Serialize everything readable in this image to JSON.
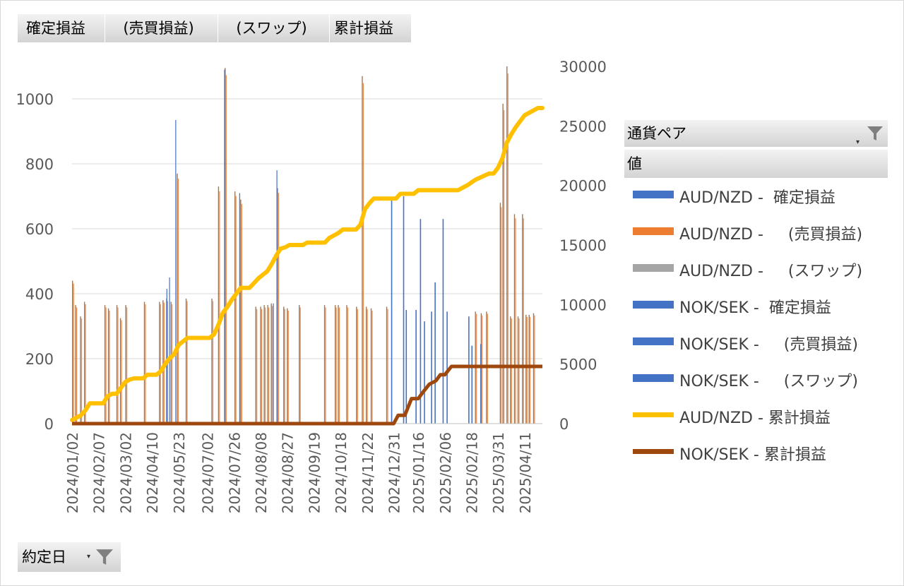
{
  "pivot_buttons": {
    "value_fields": [
      "確定損益",
      "  (売買損益)",
      "  (スワップ)",
      "累計損益"
    ],
    "axis_field": "約定日",
    "legend_field": "通貨ペア",
    "values_label": "値"
  },
  "colors": {
    "aud_realized": "#4472c4",
    "aud_trade": "#ed7d31",
    "aud_swap": "#a5a5a5",
    "nok_realized": "#4472c4",
    "nok_trade": "#4472c4",
    "nok_swap": "#4472c4",
    "aud_cum": "#ffc000",
    "nok_cum": "#9e480e",
    "bar_brown": "#a0785a"
  },
  "icons": {
    "filter": "funnel-icon",
    "dropdown": "dropdown-arrow-icon"
  },
  "chart_data": {
    "type": "bar+line",
    "x_tick_labels": [
      "2024/01/02",
      "2024/02/07",
      "2024/03/02",
      "2024/04/10",
      "2024/05/23",
      "2024/07/02",
      "2024/07/26",
      "2024/08/08",
      "2024/08/27",
      "2024/09/19",
      "2024/10/18",
      "2024/11/22",
      "2024/12/31",
      "2025/01/16",
      "2025/02/06",
      "2025/02/18",
      "2025/03/31",
      "2025/04/11"
    ],
    "y_left": {
      "ticks": [
        "0",
        "200",
        "400",
        "600",
        "800",
        "1000"
      ],
      "lim": [
        0,
        1000
      ]
    },
    "y_right": {
      "ticks": [
        "0",
        "5000",
        "10000",
        "15000",
        "20000",
        "25000",
        "30000"
      ],
      "lim": [
        0,
        30000
      ]
    },
    "grid": true,
    "legend_position": "right",
    "series": [
      {
        "name": "AUD/NZD -  確定損益",
        "kind": "bar",
        "color_key": "aud_realized"
      },
      {
        "name": "AUD/NZD -     (売買損益)",
        "kind": "bar",
        "color_key": "aud_trade"
      },
      {
        "name": "AUD/NZD -     (スワップ)",
        "kind": "bar",
        "color_key": "aud_swap"
      },
      {
        "name": "NOK/SEK -  確定損益",
        "kind": "bar",
        "color_key": "nok_realized"
      },
      {
        "name": "NOK/SEK -     (売買損益)",
        "kind": "bar",
        "color_key": "nok_trade"
      },
      {
        "name": "NOK/SEK -     (スワップ)",
        "kind": "bar",
        "color_key": "nok_swap"
      },
      {
        "name": "AUD/NZD - 累計損益",
        "kind": "line",
        "color_key": "aud_cum"
      },
      {
        "name": "NOK/SEK - 累計損益",
        "kind": "line",
        "color_key": "nok_cum"
      }
    ],
    "aud_bars": [
      [
        0.0,
        440
      ],
      [
        0.7,
        365
      ],
      [
        1.8,
        330
      ],
      [
        2.7,
        375
      ],
      [
        7.3,
        365
      ],
      [
        8.1,
        355
      ],
      [
        10.0,
        365
      ],
      [
        10.8,
        325
      ],
      [
        12.0,
        365
      ],
      [
        16.2,
        375
      ],
      [
        19.6,
        375
      ],
      [
        20.4,
        380
      ],
      [
        21.2,
        385
      ],
      [
        22.2,
        375
      ],
      [
        23.6,
        770
      ],
      [
        25.6,
        385
      ],
      [
        31.4,
        385
      ],
      [
        32.9,
        730
      ],
      [
        34.4,
        1095
      ],
      [
        36.6,
        715
      ],
      [
        37.9,
        690
      ],
      [
        41.3,
        360
      ],
      [
        42.4,
        360
      ],
      [
        43.2,
        365
      ],
      [
        44.0,
        365
      ],
      [
        44.8,
        370
      ],
      [
        46.2,
        725
      ],
      [
        47.6,
        360
      ],
      [
        48.4,
        355
      ],
      [
        51.1,
        365
      ],
      [
        56.8,
        365
      ],
      [
        59.2,
        365
      ],
      [
        59.9,
        365
      ],
      [
        61.8,
        365
      ],
      [
        64.0,
        360
      ],
      [
        65.3,
        1070
      ],
      [
        66.2,
        360
      ],
      [
        67.3,
        355
      ],
      [
        70.8,
        360
      ],
      [
        90.8,
        345
      ],
      [
        92.1,
        340
      ],
      [
        93.3,
        345
      ],
      [
        96.4,
        680
      ],
      [
        97.0,
        985
      ],
      [
        97.9,
        1100
      ],
      [
        98.7,
        330
      ],
      [
        99.6,
        645
      ],
      [
        100.4,
        330
      ],
      [
        101.4,
        645
      ],
      [
        102.2,
        335
      ],
      [
        102.9,
        335
      ],
      [
        103.9,
        340
      ]
    ],
    "nok_bars": [
      [
        71.9,
        690
      ],
      [
        74.6,
        700
      ],
      [
        75.2,
        350
      ],
      [
        77.4,
        350
      ],
      [
        78.4,
        630
      ],
      [
        79.3,
        315
      ],
      [
        80.9,
        345
      ],
      [
        81.7,
        435
      ],
      [
        83.5,
        630
      ],
      [
        84.4,
        345
      ],
      [
        89.3,
        330
      ],
      [
        90.0,
        240
      ],
      [
        92.0,
        245
      ]
    ],
    "aud_blue_spikes": [
      [
        23.5,
        935
      ],
      [
        21.5,
        415
      ],
      [
        22.1,
        450
      ],
      [
        46.3,
        780
      ],
      [
        34.5,
        1090
      ],
      [
        37.9,
        710
      ],
      [
        45.5,
        370
      ]
    ],
    "aud_cum": [
      [
        0,
        300
      ],
      [
        1,
        500
      ],
      [
        2,
        700
      ],
      [
        3,
        1100
      ],
      [
        4,
        1700
      ],
      [
        6,
        1700
      ],
      [
        7,
        1700
      ],
      [
        8,
        2300
      ],
      [
        9,
        2500
      ],
      [
        10,
        2500
      ],
      [
        11,
        3000
      ],
      [
        12,
        3500
      ],
      [
        13,
        3700
      ],
      [
        14,
        3800
      ],
      [
        16,
        3800
      ],
      [
        17,
        4100
      ],
      [
        19,
        4100
      ],
      [
        20,
        4400
      ],
      [
        21,
        5000
      ],
      [
        22,
        5500
      ],
      [
        23,
        5800
      ],
      [
        24,
        6600
      ],
      [
        25,
        6900
      ],
      [
        26,
        7200
      ],
      [
        31,
        7200
      ],
      [
        32,
        7500
      ],
      [
        33,
        8300
      ],
      [
        34,
        9300
      ],
      [
        35,
        9800
      ],
      [
        36,
        10400
      ],
      [
        37,
        10900
      ],
      [
        38,
        11400
      ],
      [
        40,
        11400
      ],
      [
        41,
        11800
      ],
      [
        42,
        12200
      ],
      [
        44,
        12800
      ],
      [
        45,
        13400
      ],
      [
        46,
        14100
      ],
      [
        47,
        14700
      ],
      [
        48,
        14800
      ],
      [
        49,
        15000
      ],
      [
        52,
        15000
      ],
      [
        53,
        15200
      ],
      [
        57,
        15200
      ],
      [
        58,
        15600
      ],
      [
        60,
        16000
      ],
      [
        61,
        16300
      ],
      [
        64,
        16300
      ],
      [
        65,
        16700
      ],
      [
        66,
        18000
      ],
      [
        67,
        18500
      ],
      [
        68,
        18900
      ],
      [
        73,
        18900
      ],
      [
        74,
        19300
      ],
      [
        77,
        19300
      ],
      [
        78,
        19600
      ],
      [
        87,
        19600
      ],
      [
        89,
        20000
      ],
      [
        91,
        20500
      ],
      [
        94,
        21000
      ],
      [
        95,
        21000
      ],
      [
        96,
        21500
      ],
      [
        97,
        22300
      ],
      [
        98,
        23600
      ],
      [
        99,
        24300
      ],
      [
        100,
        24900
      ],
      [
        101,
        25400
      ],
      [
        102,
        25900
      ],
      [
        103,
        26100
      ],
      [
        104,
        26300
      ],
      [
        105,
        26500
      ],
      [
        106,
        26500
      ]
    ],
    "nok_cum": [
      [
        0,
        0
      ],
      [
        72.5,
        0
      ],
      [
        73.5,
        700
      ],
      [
        75,
        700
      ],
      [
        76.5,
        2100
      ],
      [
        78,
        2100
      ],
      [
        79,
        2600
      ],
      [
        80.5,
        3300
      ],
      [
        82,
        3600
      ],
      [
        83,
        4100
      ],
      [
        84,
        4100
      ],
      [
        85.5,
        4800
      ],
      [
        106,
        4800
      ]
    ]
  }
}
